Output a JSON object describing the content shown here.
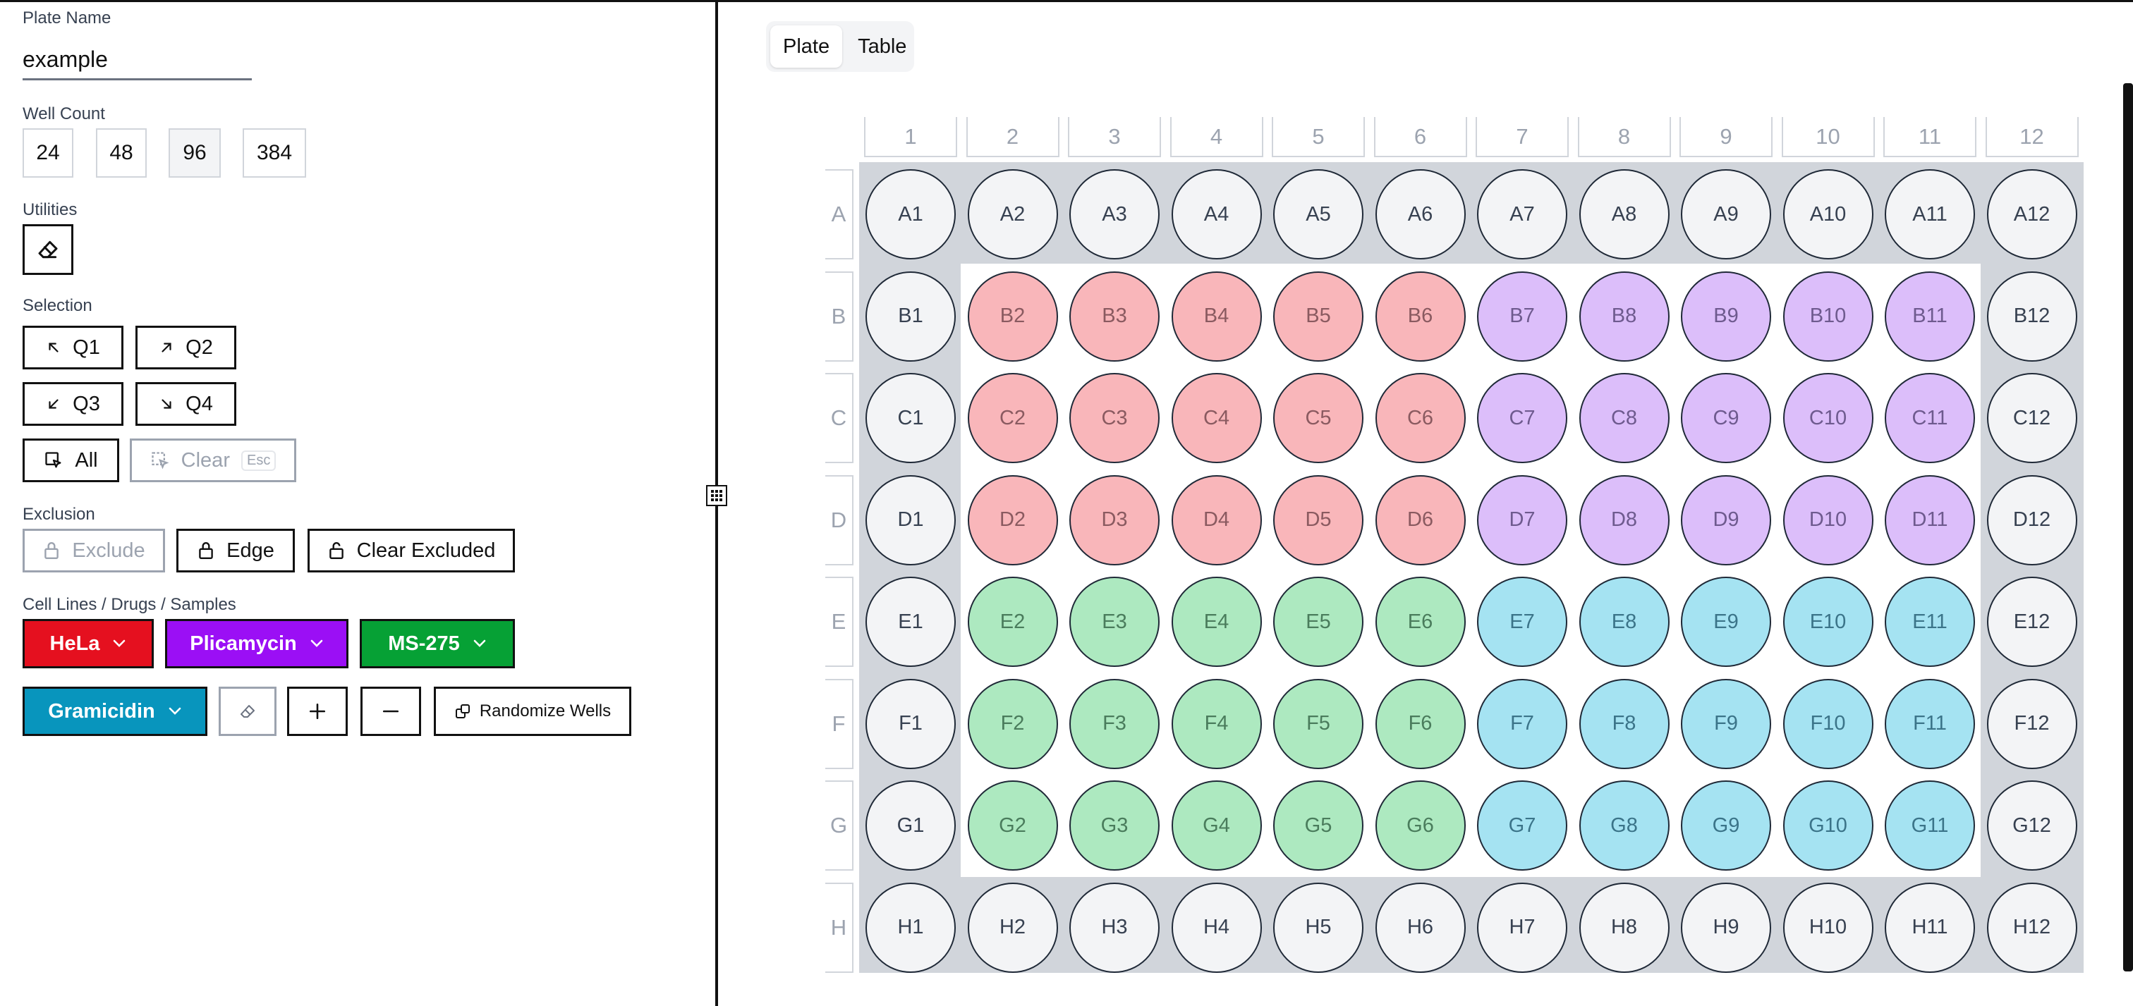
{
  "plate_name": {
    "label": "Plate Name",
    "value": "example"
  },
  "well_count": {
    "label": "Well Count",
    "options": [
      "24",
      "48",
      "96",
      "384"
    ],
    "selected": "96"
  },
  "utilities": {
    "label": "Utilities",
    "eraser_icon": "eraser-icon"
  },
  "selection": {
    "label": "Selection",
    "q1": "Q1",
    "q2": "Q2",
    "q3": "Q3",
    "q4": "Q4",
    "all": "All",
    "clear": "Clear",
    "clear_key": "Esc"
  },
  "exclusion": {
    "label": "Exclusion",
    "exclude": "Exclude",
    "edge": "Edge",
    "clear_excluded": "Clear Excluded"
  },
  "samples": {
    "label": "Cell Lines / Drugs / Samples",
    "items": [
      {
        "name": "HeLa",
        "color": "#e5101f"
      },
      {
        "name": "Plicamycin",
        "color": "#9b0ff5"
      },
      {
        "name": "MS-275",
        "color": "#06a135"
      },
      {
        "name": "Gramicidin",
        "color": "#0895bd"
      }
    ],
    "randomize": "Randomize Wells"
  },
  "view_tabs": {
    "plate": "Plate",
    "table": "Table",
    "active": "Plate"
  },
  "plate": {
    "columns": [
      "1",
      "2",
      "3",
      "4",
      "5",
      "6",
      "7",
      "8",
      "9",
      "10",
      "11",
      "12"
    ],
    "rows": [
      "A",
      "B",
      "C",
      "D",
      "E",
      "F",
      "G",
      "H"
    ],
    "colors": {
      "empty": {
        "fill": "#f3f4f6",
        "text": "#374151"
      },
      "HeLa": {
        "fill": "#f9b6ba",
        "text": "#8a5a60"
      },
      "Plicamycin": {
        "fill": "#dcbefa",
        "text": "#6e5a8e"
      },
      "MS-275": {
        "fill": "#ade9c0",
        "text": "#4a7c5c"
      },
      "Gramicidin": {
        "fill": "#a5e3f2",
        "text": "#3b7489"
      }
    },
    "regions": [
      {
        "sample": "HeLa",
        "rows": [
          "B",
          "C",
          "D"
        ],
        "cols": [
          2,
          6
        ]
      },
      {
        "sample": "Plicamycin",
        "rows": [
          "B",
          "C",
          "D"
        ],
        "cols": [
          7,
          11
        ]
      },
      {
        "sample": "MS-275",
        "rows": [
          "E",
          "F",
          "G"
        ],
        "cols": [
          2,
          6
        ]
      },
      {
        "sample": "Gramicidin",
        "rows": [
          "E",
          "F",
          "G"
        ],
        "cols": [
          7,
          11
        ]
      }
    ]
  }
}
